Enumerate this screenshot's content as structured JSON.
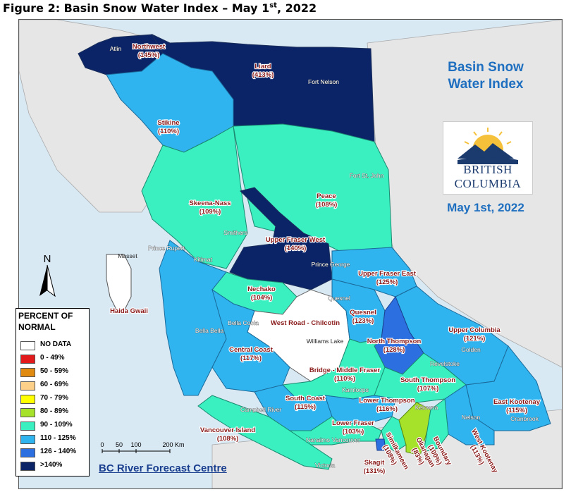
{
  "figure": {
    "title_main": "Figure 2: Basin Snow Water Index – May 1",
    "title_sup": "st",
    "title_end": ", 2022"
  },
  "index_box": {
    "line1": "Basin Snow",
    "line2": "Water Index",
    "logo_line1": "BRITISH",
    "logo_line2": "COLUMBIA",
    "date": "May 1st, 2022"
  },
  "legend": {
    "title_line1": "PERCENT OF",
    "title_line2": "NORMAL",
    "items": [
      {
        "label": "NO DATA",
        "color": "#ffffff"
      },
      {
        "label": "0 - 49%",
        "color": "#e31a1c"
      },
      {
        "label": "50 - 59%",
        "color": "#e08a10"
      },
      {
        "label": "60 - 69%",
        "color": "#fdd08a"
      },
      {
        "label": "70 - 79%",
        "color": "#ffff00"
      },
      {
        "label": "80 - 89%",
        "color": "#a6e22a"
      },
      {
        "label": "90 - 109%",
        "color": "#3af0c0"
      },
      {
        "label": "110 - 125%",
        "color": "#2fb4ef"
      },
      {
        "label": "126 - 140%",
        "color": "#2c6fe0"
      },
      {
        "label": ">140%",
        "color": "#0b2468"
      }
    ]
  },
  "north_arrow": {
    "label": "N"
  },
  "scale_bar": {
    "t0": "0",
    "t1": "50",
    "t2": "100",
    "t3": "200 Km"
  },
  "credit": "BC River Forecast Centre",
  "basins": {
    "northwest": {
      "name": "Northwest",
      "pct": "(145%)"
    },
    "liard": {
      "name": "Liard",
      "pct": "(413%)"
    },
    "stikine": {
      "name": "Stikine",
      "pct": "(110%)"
    },
    "skeena": {
      "name": "Skeena-Nass",
      "pct": "(109%)"
    },
    "peace": {
      "name": "Peace",
      "pct": "(108%)"
    },
    "ufw": {
      "name": "Upper Fraser West",
      "pct": "(140%)"
    },
    "ufe": {
      "name": "Upper Fraser East",
      "pct": "(125%)"
    },
    "nechako": {
      "name": "Nechako",
      "pct": "(104%)"
    },
    "haida": {
      "name": "Haida Gwaii"
    },
    "westroad": {
      "name": "West Road - Chilcotin"
    },
    "quesnel": {
      "name": "Quesnel",
      "pct": "(123%)"
    },
    "upcol": {
      "name": "Upper Columbia",
      "pct": "(121%)"
    },
    "nthompson": {
      "name": "North Thompson",
      "pct": "(128%)"
    },
    "central": {
      "name": "Central Coast",
      "pct": "(117%)"
    },
    "bridge": {
      "name": "Bridge - Middle Fraser",
      "pct": "(110%)"
    },
    "sthompson": {
      "name": "South Thompson",
      "pct": "(107%)"
    },
    "southcoast": {
      "name": "South Coast",
      "pct": "(115%)"
    },
    "lthompson": {
      "name": "Lower Thompson",
      "pct": "(116%)"
    },
    "ekootenay": {
      "name": "East Kootenay",
      "pct": "(115%)"
    },
    "vanisl": {
      "name": "Vancouver Island",
      "pct": "(108%)"
    },
    "lfraser": {
      "name": "Lower Fraser",
      "pct": "(103%)"
    },
    "skagit": {
      "name": "Skagit",
      "pct": "(131%)"
    },
    "simil": {
      "name": "Similkameen",
      "pct": "(108%)"
    },
    "okanagan": {
      "name": "Okanagan",
      "pct": "(83%)"
    },
    "boundary": {
      "name": "Boundary",
      "pct": "(100%)"
    },
    "wkootenay": {
      "name": "West Kootenay",
      "pct": "(113%)"
    }
  },
  "towns": {
    "atlin": "Atlin",
    "fortnelson": "Fort Nelson",
    "fortstjohn": "Fort St. John",
    "smithers": "Smithers",
    "masset": "Masset",
    "princerupert": "Prince Rupert",
    "kitimat": "Kitimat",
    "princegeorge": "Prince George",
    "quesnel": "Quesnel",
    "bellabella": "Bella Bella",
    "bellacoola": "Bella Coola",
    "williamslake": "Williams Lake",
    "golden": "Golden",
    "revelstoke": "Revelstoke",
    "kamloops": "Kamloops",
    "kelowna": "Kelowna",
    "campbellriver": "Campbell River",
    "nelson": "Nelson",
    "cranbrook": "Cranbrook",
    "nanaimo": "Nanaimo",
    "vancouver": "Vancouver",
    "victoria": "Victoria"
  }
}
